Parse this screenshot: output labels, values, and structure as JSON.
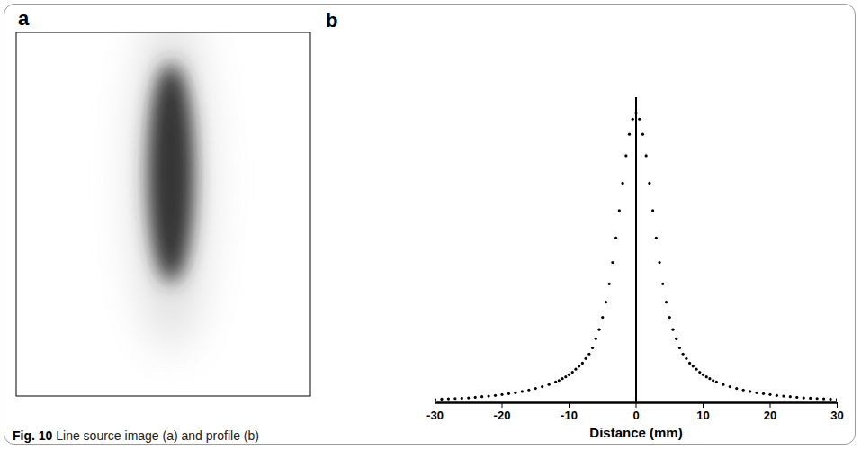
{
  "chart_data": [
    {
      "type": "image",
      "panel": "a"
    },
    {
      "type": "scatter",
      "panel": "b",
      "x_label": "Distance (mm)",
      "x": [
        -30,
        -29,
        -28,
        -27,
        -26,
        -25,
        -24,
        -23,
        -22,
        -21,
        -20,
        -19,
        -18,
        -17,
        -16,
        -15,
        -14,
        -13,
        -12,
        -11.5,
        -11,
        -10.5,
        -10,
        -9.5,
        -9,
        -8.5,
        -8,
        -7.5,
        -7,
        -6.5,
        -6,
        -5.5,
        -5,
        -4.5,
        -4,
        -3.5,
        -3,
        -2.5,
        -2,
        -1.5,
        -1,
        -0.5,
        0,
        0.5,
        1,
        1.5,
        2,
        2.5,
        3,
        3.5,
        4,
        4.5,
        5,
        5.5,
        6,
        6.5,
        7,
        7.5,
        8,
        8.5,
        9,
        9.5,
        10,
        10.5,
        11,
        11.5,
        12,
        13,
        14,
        15,
        16,
        17,
        18,
        19,
        20,
        21,
        22,
        23,
        24,
        25,
        26,
        27,
        28,
        29,
        30
      ],
      "values": [
        0.011,
        0.012,
        0.013,
        0.014,
        0.015,
        0.016,
        0.018,
        0.02,
        0.022,
        0.024,
        0.027,
        0.03,
        0.033,
        0.037,
        0.042,
        0.047,
        0.053,
        0.06,
        0.068,
        0.073,
        0.079,
        0.085,
        0.092,
        0.1,
        0.11,
        0.12,
        0.13,
        0.145,
        0.16,
        0.18,
        0.21,
        0.24,
        0.28,
        0.33,
        0.39,
        0.46,
        0.54,
        0.63,
        0.72,
        0.81,
        0.88,
        0.93,
        0.95,
        0.93,
        0.88,
        0.81,
        0.72,
        0.63,
        0.54,
        0.46,
        0.39,
        0.33,
        0.28,
        0.24,
        0.21,
        0.18,
        0.16,
        0.145,
        0.13,
        0.12,
        0.11,
        0.1,
        0.092,
        0.085,
        0.079,
        0.073,
        0.068,
        0.06,
        0.053,
        0.047,
        0.042,
        0.037,
        0.033,
        0.03,
        0.027,
        0.024,
        0.022,
        0.02,
        0.018,
        0.016,
        0.015,
        0.014,
        0.013,
        0.012,
        0.011
      ],
      "xlim": [
        -30,
        30
      ],
      "xticks": [
        -30,
        -20,
        -10,
        0,
        10,
        20,
        30
      ],
      "ylim": [
        0,
        1
      ],
      "tick_labels": "x",
      "color": "#000000",
      "marker": "circle"
    }
  ],
  "caption": {
    "label": "Fig. 10",
    "text": "Line source image (a) and profile (b)"
  }
}
